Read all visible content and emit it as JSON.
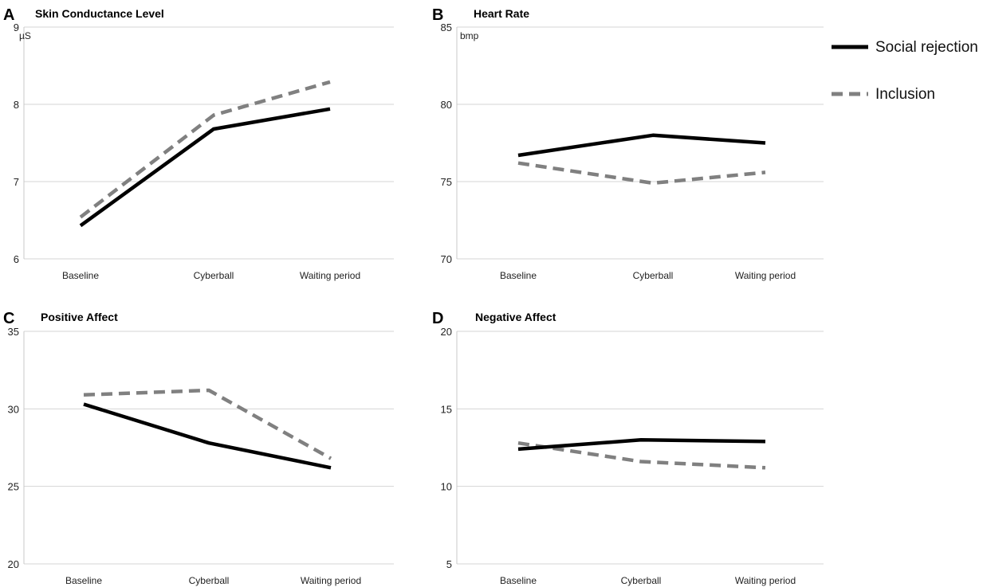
{
  "legend": {
    "items": [
      {
        "name": "Social rejection",
        "color": "#000000",
        "dashed": false
      },
      {
        "name": "Inclusion",
        "color": "#808080",
        "dashed": true
      }
    ]
  },
  "chart_data": [
    {
      "letter": "A",
      "type": "line",
      "title": "Skin Conductance Level",
      "unit": "µS",
      "categories": [
        "Baseline",
        "Cyberball",
        "Waiting period"
      ],
      "ylim": [
        6,
        9
      ],
      "yticks": [
        6,
        7,
        8,
        9
      ],
      "grid": true,
      "series": [
        {
          "name": "Social rejection",
          "values": [
            6.43,
            7.68,
            7.94
          ]
        },
        {
          "name": "Inclusion",
          "values": [
            6.54,
            7.86,
            8.29
          ]
        }
      ]
    },
    {
      "letter": "B",
      "type": "line",
      "title": "Heart Rate",
      "unit": "bmp",
      "categories": [
        "Baseline",
        "Cyberball",
        "Waiting period"
      ],
      "ylim": [
        70,
        85
      ],
      "yticks": [
        70,
        75,
        80,
        85
      ],
      "grid": true,
      "series": [
        {
          "name": "Social rejection",
          "values": [
            76.7,
            78.0,
            77.5
          ]
        },
        {
          "name": "Inclusion",
          "values": [
            76.2,
            74.9,
            75.6
          ]
        }
      ]
    },
    {
      "letter": "C",
      "type": "line",
      "title": "Positive Affect",
      "unit": "",
      "categories": [
        "Baseline",
        "Cyberball",
        "Waiting period"
      ],
      "ylim": [
        20,
        35
      ],
      "yticks": [
        20,
        25,
        30,
        35
      ],
      "grid": true,
      "series": [
        {
          "name": "Social rejection",
          "values": [
            30.3,
            27.8,
            26.2
          ]
        },
        {
          "name": "Inclusion",
          "values": [
            30.9,
            31.2,
            26.8
          ]
        }
      ]
    },
    {
      "letter": "D",
      "type": "line",
      "title": "Negative Affect",
      "unit": "",
      "categories": [
        "Baseline",
        "Cyberball",
        "Waiting period"
      ],
      "ylim": [
        5,
        20
      ],
      "yticks": [
        5,
        10,
        15,
        20
      ],
      "grid": true,
      "series": [
        {
          "name": "Social rejection",
          "values": [
            12.4,
            13.0,
            12.9
          ]
        },
        {
          "name": "Inclusion",
          "values": [
            12.8,
            11.6,
            11.2
          ]
        }
      ]
    }
  ]
}
